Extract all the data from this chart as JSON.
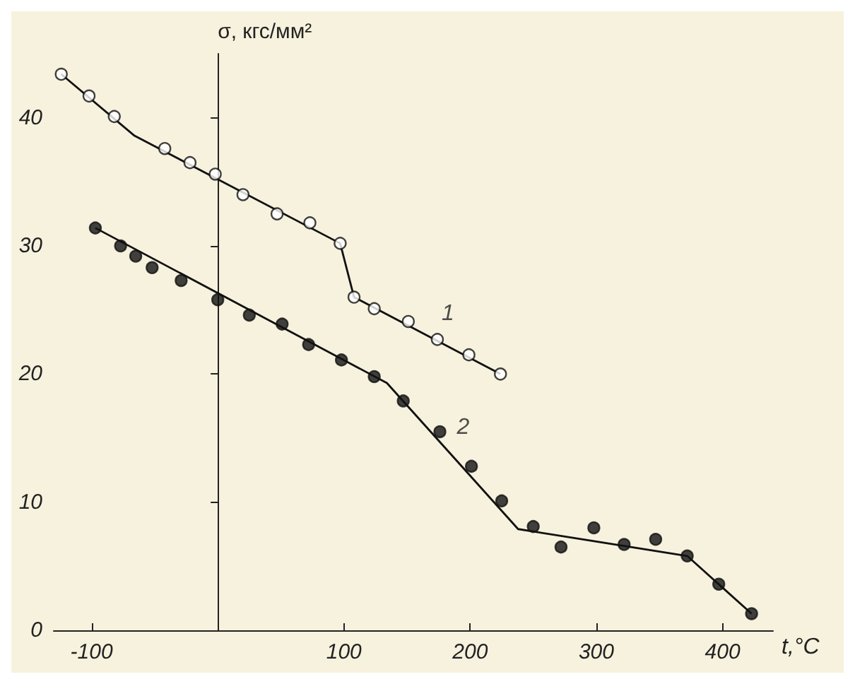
{
  "chart_data": {
    "type": "scatter",
    "xlabel": "t,°C",
    "ylabel": "σ, кгс/мм²",
    "xlim": [
      -130,
      440
    ],
    "ylim": [
      0,
      45
    ],
    "xticks": [
      -100,
      100,
      200,
      300,
      400
    ],
    "yticks": [
      0,
      10,
      20,
      30,
      40
    ],
    "grid": false,
    "marker": "circle",
    "series": [
      {
        "color": "#ffffff",
        "x": [
          -124,
          -102,
          -82,
          -42,
          -22,
          -2,
          20,
          47,
          73,
          97,
          108,
          124,
          151,
          174,
          199,
          224
        ],
        "values": [
          43.4,
          41.7,
          40.1,
          37.6,
          36.5,
          35.6,
          34.0,
          32.5,
          31.8,
          30.2,
          26.0,
          25.1,
          24.1,
          22.7,
          21.5,
          20.0
        ]
      },
      {
        "color": "#111111",
        "x": [
          -97,
          -77,
          -65,
          -52,
          -29,
          0,
          25,
          51,
          72,
          98,
          124,
          147,
          176,
          201,
          225,
          250,
          272,
          298,
          322,
          347,
          372,
          397,
          423
        ],
        "values": [
          31.4,
          30.0,
          29.2,
          28.3,
          27.3,
          25.8,
          24.6,
          23.9,
          22.3,
          21.1,
          19.8,
          17.9,
          15.5,
          12.8,
          10.1,
          8.1,
          6.5,
          8.0,
          6.7,
          7.1,
          5.8,
          3.6,
          1.3
        ]
      },
      {
        "type": "line",
        "color": "#111111",
        "marker": "none",
        "x": [
          -124,
          -66,
          97,
          108,
          224
        ],
        "values": [
          43.4,
          38.6,
          30.2,
          26.0,
          20.0
        ]
      },
      {
        "type": "line",
        "color": "#111111",
        "marker": "none",
        "x": [
          -97,
          134,
          238,
          372,
          423
        ],
        "values": [
          31.4,
          19.3,
          7.9,
          5.8,
          1.3
        ]
      }
    ],
    "annotations": [
      "1",
      "2"
    ]
  }
}
